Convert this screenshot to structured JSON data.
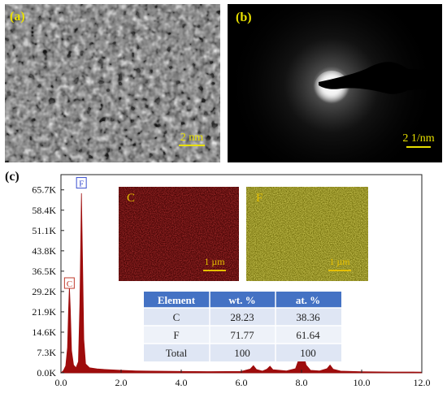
{
  "panel_a": {
    "label": "(a)",
    "scale_bar": "2 nm"
  },
  "panel_b": {
    "label": "(b)",
    "scale_bar": "2 1/nm"
  },
  "panel_c": {
    "label": "(c)",
    "map_c": {
      "element": "C",
      "scale_bar": "1 µm",
      "color": "#8b0e0e"
    },
    "map_f": {
      "element": "F",
      "scale_bar": "1 µm",
      "color": "#b8b21c"
    },
    "table": {
      "headers": [
        "Element",
        "wt. %",
        "at. %"
      ],
      "rows": [
        [
          "C",
          "28.23",
          "38.36"
        ],
        [
          "F",
          "71.77",
          "61.64"
        ],
        [
          "Total",
          "100",
          "100"
        ]
      ],
      "header_color": "#4472c4"
    }
  },
  "chart_data": {
    "type": "area",
    "x_ticks": [
      "0.0",
      "2.0",
      "4.0",
      "6.0",
      "8.0",
      "10.0",
      "12.0"
    ],
    "y_ticks": [
      "0.0K",
      "7.3K",
      "14.6K",
      "21.9K",
      "29.2K",
      "36.5K",
      "43.8K",
      "51.1K",
      "58.4K",
      "65.7K"
    ],
    "xlim": [
      0,
      12
    ],
    "ylim": [
      0,
      70000
    ],
    "peak_labels": [
      {
        "text": "C",
        "x": 0.28,
        "y": 31500
      },
      {
        "text": "F",
        "x": 0.68,
        "y": 67500
      }
    ],
    "spectrum": [
      [
        0,
        0
      ],
      [
        0.08,
        800
      ],
      [
        0.16,
        2500
      ],
      [
        0.22,
        9000
      ],
      [
        0.25,
        22000
      ],
      [
        0.28,
        31000
      ],
      [
        0.31,
        23000
      ],
      [
        0.35,
        8000
      ],
      [
        0.42,
        2800
      ],
      [
        0.5,
        1800
      ],
      [
        0.58,
        4000
      ],
      [
        0.63,
        25000
      ],
      [
        0.68,
        64500
      ],
      [
        0.72,
        40000
      ],
      [
        0.76,
        12000
      ],
      [
        0.82,
        3200
      ],
      [
        0.95,
        1800
      ],
      [
        1.2,
        1400
      ],
      [
        1.6,
        1100
      ],
      [
        2.0,
        900
      ],
      [
        2.5,
        700
      ],
      [
        3.0,
        600
      ],
      [
        4.0,
        500
      ],
      [
        5.0,
        450
      ],
      [
        6.0,
        500
      ],
      [
        6.3,
        1400
      ],
      [
        6.4,
        2600
      ],
      [
        6.5,
        1200
      ],
      [
        6.7,
        600
      ],
      [
        6.85,
        1300
      ],
      [
        6.95,
        2400
      ],
      [
        7.05,
        1100
      ],
      [
        7.5,
        700
      ],
      [
        7.8,
        1500
      ],
      [
        7.95,
        6000
      ],
      [
        8.05,
        7200
      ],
      [
        8.15,
        2800
      ],
      [
        8.3,
        900
      ],
      [
        8.6,
        700
      ],
      [
        8.85,
        1500
      ],
      [
        8.95,
        2800
      ],
      [
        9.05,
        1300
      ],
      [
        9.3,
        600
      ],
      [
        10.0,
        400
      ],
      [
        11.0,
        300
      ],
      [
        12.0,
        250
      ]
    ],
    "fill_color": "#9e0c0c"
  }
}
